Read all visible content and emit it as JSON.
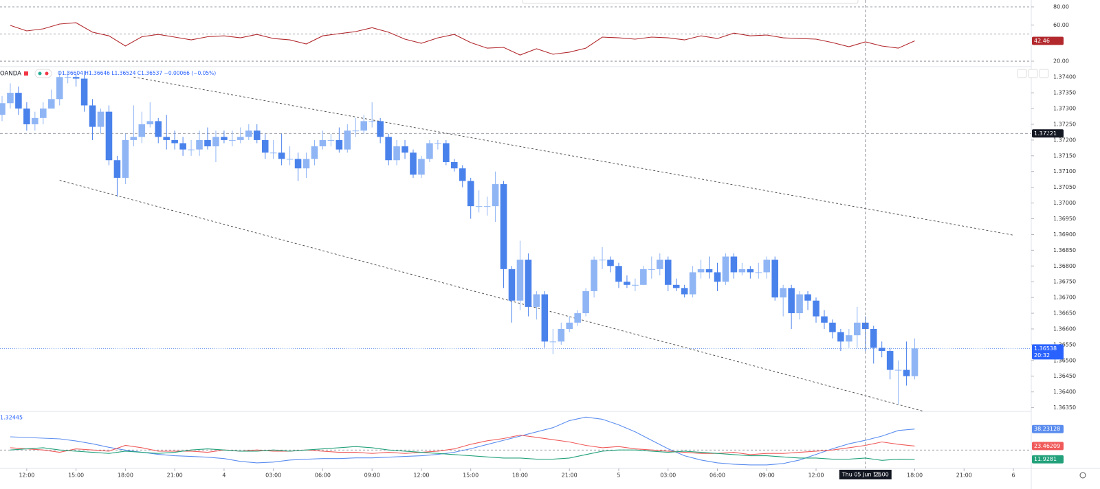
{
  "symbol": "OANDA",
  "readout": "O1.36604 H1.36646 L1.36524 C1.36537 −0.00066 (−0.05%)",
  "chart_data": [
    {
      "type": "line",
      "xlim": [
        0,
        124
      ],
      "ylim": [
        13.2,
        87.6
      ],
      "yticks": [
        {
          "value": 80,
          "label": "80.00"
        },
        {
          "value": 60,
          "label": "60.00"
        },
        {
          "value": 20,
          "label": "20.00"
        }
      ],
      "bands": [
        80,
        50,
        20
      ],
      "x": [
        1,
        3,
        5,
        7,
        9,
        11,
        13,
        15,
        17,
        19,
        21,
        23,
        25,
        27,
        29,
        31,
        33,
        35,
        37,
        39,
        41,
        43,
        45,
        47,
        49,
        51,
        53,
        55,
        57,
        59,
        61,
        63,
        65,
        67,
        69,
        71,
        73,
        75,
        77,
        79,
        81,
        83,
        85,
        87,
        89,
        91,
        93,
        95,
        97,
        99,
        101,
        103,
        105,
        107,
        109,
        111
      ],
      "series": [
        {
          "color": "#b2282d",
          "values": [
            59.5,
            53.4,
            55.7,
            61,
            62.5,
            52,
            48,
            36.7,
            47,
            49.6,
            46.6,
            43.5,
            47,
            48,
            45.8,
            49.6,
            45,
            43.5,
            39,
            48,
            50.4,
            52.7,
            57,
            52,
            44.3,
            39.8,
            45.8,
            49.6,
            40.5,
            34.4,
            35.2,
            26.8,
            33.7,
            27.6,
            30,
            34.4,
            46.6,
            45.8,
            44.3,
            46.6,
            45.8,
            43.5,
            48,
            45,
            51,
            48,
            48.9,
            45.8,
            45,
            44.3,
            40.5,
            36,
            41.3,
            36.7,
            34.4,
            42.46
          ]
        }
      ]
    },
    {
      "type": "candlestick",
      "up_color": "#8fb5f5",
      "down_color": "#4a82ec",
      "xlim": [
        0,
        124
      ],
      "ylim": [
        1.36336,
        1.37431
      ],
      "xticks": [
        {
          "value": 3,
          "label": "12:00"
        },
        {
          "value": 9,
          "label": "15:00"
        },
        {
          "value": 15,
          "label": "18:00"
        },
        {
          "value": 21,
          "label": "21:00"
        },
        {
          "value": 27,
          "label": "4"
        },
        {
          "value": 33,
          "label": "03:00"
        },
        {
          "value": 39,
          "label": "06:00"
        },
        {
          "value": 45,
          "label": "09:00"
        },
        {
          "value": 51,
          "label": "12:00"
        },
        {
          "value": 57,
          "label": "15:00"
        },
        {
          "value": 63,
          "label": "18:00"
        },
        {
          "value": 69,
          "label": "21:00"
        },
        {
          "value": 75,
          "label": "5"
        },
        {
          "value": 81,
          "label": "03:00"
        },
        {
          "value": 87,
          "label": "06:00"
        },
        {
          "value": 93,
          "label": "09:00"
        },
        {
          "value": 99,
          "label": "12:00"
        },
        {
          "value": 111,
          "label": "18:00"
        },
        {
          "value": 117,
          "label": "21:00"
        },
        {
          "value": 123,
          "label": "6"
        }
      ],
      "yticks": [
        {
          "value": 1.374,
          "label": "1.37400"
        },
        {
          "value": 1.3735,
          "label": "1.37350"
        },
        {
          "value": 1.373,
          "label": "1.37300"
        },
        {
          "value": 1.3725,
          "label": "1.37250"
        },
        {
          "value": 1.372,
          "label": "1.37200"
        },
        {
          "value": 1.3715,
          "label": "1.37150"
        },
        {
          "value": 1.371,
          "label": "1.37100"
        },
        {
          "value": 1.3705,
          "label": "1.37050"
        },
        {
          "value": 1.37,
          "label": "1.37000"
        },
        {
          "value": 1.3695,
          "label": "1.36950"
        },
        {
          "value": 1.369,
          "label": "1.36900"
        },
        {
          "value": 1.3685,
          "label": "1.36850"
        },
        {
          "value": 1.368,
          "label": "1.36800"
        },
        {
          "value": 1.3675,
          "label": "1.36750"
        },
        {
          "value": 1.367,
          "label": "1.36700"
        },
        {
          "value": 1.3665,
          "label": "1.36650"
        },
        {
          "value": 1.366,
          "label": "1.36600"
        },
        {
          "value": 1.3655,
          "label": "1.36550"
        },
        {
          "value": 1.365,
          "label": "1.36500"
        },
        {
          "value": 1.3645,
          "label": "1.36450"
        },
        {
          "value": 1.364,
          "label": "1.36400"
        },
        {
          "value": 1.3635,
          "label": "1.36350"
        }
      ],
      "price_line": 1.37221,
      "countdown": "20:32",
      "crosshair": {
        "x": 105,
        "date": "Thu 05 Jun '25",
        "time": "15:00"
      },
      "trendlines": [
        {
          "x": [
            16,
            123
          ],
          "y": [
            1.374,
            1.36898
          ]
        },
        {
          "x": [
            7,
            112
          ],
          "y": [
            1.37072,
            1.36339
          ]
        }
      ],
      "open": [
        1.3728,
        1.37317,
        1.3735,
        1.373,
        1.3725,
        1.3727,
        1.373,
        1.3733,
        1.374,
        1.374,
        1.37395,
        1.3731,
        1.37242,
        1.3729,
        1.37136,
        1.3708,
        1.372,
        1.3721,
        1.3725,
        1.3726,
        1.3721,
        1.372,
        1.3719,
        1.3717,
        1.3717,
        1.372,
        1.3718,
        1.3721,
        1.372,
        1.372,
        1.3721,
        1.3723,
        1.372,
        1.3716,
        1.3716,
        1.3714,
        1.3714,
        1.3711,
        1.3714,
        1.3718,
        1.372,
        1.372,
        1.3717,
        1.3723,
        1.3723,
        1.3726,
        1.3726,
        1.3721,
        1.37136,
        1.3718,
        1.3716,
        1.3709,
        1.3714,
        1.3719,
        1.3719,
        1.3713,
        1.3711,
        1.3707,
        1.3699,
        1.3699,
        1.3699,
        1.3706,
        1.3679,
        1.3669,
        1.3682,
        1.3667,
        1.3671,
        1.3656,
        1.3656,
        1.366,
        1.3662,
        1.3665,
        1.3672,
        1.3682,
        1.3682,
        1.368,
        1.3675,
        1.3674,
        1.3674,
        1.3679,
        1.3679,
        1.3682,
        1.3674,
        1.3673,
        1.3671,
        1.3678,
        1.3679,
        1.3678,
        1.3675,
        1.3683,
        1.3678,
        1.3679,
        1.3678,
        1.3678,
        1.3682,
        1.367,
        1.3673,
        1.3665,
        1.3671,
        1.3669,
        1.3664,
        1.3662,
        1.3659,
        1.3656,
        1.3658,
        1.3662,
        1.366,
        1.3654,
        1.3653,
        1.3647,
        1.3647,
        1.3645
      ],
      "high": [
        1.3734,
        1.3738,
        1.3737,
        1.3732,
        1.3729,
        1.3732,
        1.3736,
        1.3742,
        1.3742,
        1.3741,
        1.3742,
        1.3733,
        1.373,
        1.3731,
        1.3715,
        1.3722,
        1.3731,
        1.3729,
        1.3732,
        1.3727,
        1.3728,
        1.3723,
        1.3721,
        1.372,
        1.3723,
        1.3724,
        1.3723,
        1.3723,
        1.3723,
        1.3724,
        1.3725,
        1.3725,
        1.3722,
        1.372,
        1.3722,
        1.3718,
        1.3716,
        1.3716,
        1.372,
        1.3723,
        1.3722,
        1.3724,
        1.3725,
        1.3727,
        1.3728,
        1.3732,
        1.3727,
        1.3722,
        1.372,
        1.372,
        1.3717,
        1.3715,
        1.372,
        1.372,
        1.372,
        1.3714,
        1.3712,
        1.3708,
        1.3704,
        1.3702,
        1.371,
        1.3707,
        1.368,
        1.3688,
        1.3684,
        1.3672,
        1.3672,
        1.366,
        1.3662,
        1.3664,
        1.3666,
        1.3673,
        1.3683,
        1.3686,
        1.3683,
        1.3681,
        1.3677,
        1.3676,
        1.368,
        1.3683,
        1.3684,
        1.3683,
        1.3676,
        1.3674,
        1.368,
        1.3682,
        1.3683,
        1.3681,
        1.3684,
        1.3684,
        1.3681,
        1.368,
        1.3681,
        1.3683,
        1.3683,
        1.3674,
        1.3674,
        1.3672,
        1.3672,
        1.367,
        1.3666,
        1.3663,
        1.366,
        1.366,
        1.3667,
        1.3664,
        1.3661,
        1.3656,
        1.3654,
        1.365,
        1.3656,
        1.3657
      ],
      "low": [
        1.3726,
        1.373,
        1.3728,
        1.3723,
        1.3723,
        1.3725,
        1.373,
        1.3731,
        1.3738,
        1.3737,
        1.3729,
        1.372,
        1.3722,
        1.3712,
        1.3702,
        1.3706,
        1.3718,
        1.3719,
        1.3724,
        1.3719,
        1.3717,
        1.3717,
        1.3715,
        1.3715,
        1.3715,
        1.3717,
        1.3713,
        1.3719,
        1.3718,
        1.3719,
        1.372,
        1.3719,
        1.3714,
        1.3714,
        1.3712,
        1.3712,
        1.3707,
        1.3708,
        1.3712,
        1.3717,
        1.3718,
        1.3716,
        1.3716,
        1.3721,
        1.3722,
        1.3724,
        1.3719,
        1.3712,
        1.3712,
        1.3714,
        1.3708,
        1.3708,
        1.3713,
        1.3717,
        1.3712,
        1.371,
        1.3705,
        1.3695,
        1.3697,
        1.3696,
        1.3694,
        1.3673,
        1.3662,
        1.3666,
        1.3664,
        1.3663,
        1.3654,
        1.3652,
        1.3655,
        1.3659,
        1.3661,
        1.3664,
        1.367,
        1.3679,
        1.3678,
        1.3673,
        1.3673,
        1.3672,
        1.3674,
        1.3676,
        1.3677,
        1.3672,
        1.3672,
        1.367,
        1.367,
        1.3676,
        1.3676,
        1.3672,
        1.3674,
        1.3676,
        1.3677,
        1.3676,
        1.3676,
        1.3676,
        1.3669,
        1.3664,
        1.366,
        1.3663,
        1.3666,
        1.3662,
        1.366,
        1.3657,
        1.3653,
        1.3654,
        1.3654,
        1.3653,
        1.3649,
        1.3651,
        1.3644,
        1.3636,
        1.3642,
        1.3644
      ],
      "close": [
        1.37317,
        1.3735,
        1.373,
        1.3725,
        1.3727,
        1.373,
        1.3733,
        1.374,
        1.374,
        1.37395,
        1.3731,
        1.37242,
        1.3729,
        1.37136,
        1.3708,
        1.372,
        1.3721,
        1.3725,
        1.3726,
        1.3721,
        1.372,
        1.3719,
        1.3717,
        1.3717,
        1.372,
        1.3718,
        1.3721,
        1.372,
        1.372,
        1.3721,
        1.3723,
        1.372,
        1.3716,
        1.3716,
        1.3714,
        1.3714,
        1.3711,
        1.3714,
        1.3718,
        1.372,
        1.372,
        1.3717,
        1.3723,
        1.3723,
        1.3726,
        1.3726,
        1.3721,
        1.37136,
        1.3718,
        1.3716,
        1.3709,
        1.3714,
        1.3719,
        1.3719,
        1.3713,
        1.3711,
        1.3707,
        1.3699,
        1.3699,
        1.3699,
        1.3706,
        1.3679,
        1.3669,
        1.3682,
        1.3667,
        1.3671,
        1.3656,
        1.3656,
        1.366,
        1.3662,
        1.3665,
        1.3672,
        1.3682,
        1.3682,
        1.368,
        1.3675,
        1.3674,
        1.3674,
        1.3679,
        1.3679,
        1.3682,
        1.3674,
        1.3673,
        1.3671,
        1.3678,
        1.3679,
        1.3678,
        1.3675,
        1.3683,
        1.3678,
        1.3679,
        1.3678,
        1.3678,
        1.3682,
        1.367,
        1.3673,
        1.3665,
        1.3671,
        1.3669,
        1.3664,
        1.3662,
        1.3659,
        1.3656,
        1.3658,
        1.3662,
        1.366,
        1.3654,
        1.3653,
        1.3647,
        1.3647,
        1.3645,
        1.36538
      ]
    },
    {
      "type": "line",
      "header": "1.32445",
      "xlim": [
        0,
        124
      ],
      "ylim": [
        4,
        53
      ],
      "bands": [
        20
      ],
      "x": [
        1,
        3,
        5,
        7,
        9,
        11,
        13,
        15,
        17,
        19,
        21,
        23,
        25,
        27,
        29,
        31,
        33,
        35,
        37,
        39,
        41,
        43,
        45,
        47,
        49,
        51,
        53,
        55,
        57,
        59,
        61,
        63,
        65,
        67,
        69,
        71,
        73,
        75,
        77,
        79,
        81,
        83,
        85,
        87,
        89,
        91,
        93,
        95,
        97,
        99,
        101,
        103,
        105,
        107,
        109,
        111
      ],
      "series": [
        {
          "color": "#5b8def",
          "values": [
            31.5,
            30.89,
            30.28,
            29.67,
            27.83,
            25.39,
            22.33,
            19.88,
            18.07,
            16.21,
            14.99,
            14.38,
            13.76,
            12.54,
            10.09,
            8.87,
            9.48,
            11.32,
            11.93,
            12.54,
            12.54,
            13.15,
            13.15,
            13.76,
            14.38,
            14.99,
            16.21,
            18.07,
            21.1,
            24.77,
            28.44,
            32.11,
            35.78,
            39.45,
            45.57,
            48.63,
            46.79,
            41.9,
            35.78,
            28.44,
            21.1,
            14.99,
            11.32,
            8.87,
            7.65,
            7.04,
            7.04,
            8.26,
            11.32,
            16.21,
            21.1,
            25.39,
            28.44,
            32.11,
            37.01,
            38.23128
          ]
        },
        {
          "color": "#f05a5a",
          "values": [
            22,
            21,
            20,
            18,
            21,
            20,
            19,
            24,
            22,
            19,
            19,
            19,
            18,
            20,
            19,
            20,
            19,
            19,
            20,
            19,
            18,
            18,
            17,
            18,
            17,
            18,
            19,
            21,
            25,
            28,
            30,
            33,
            31,
            29,
            27,
            24,
            22,
            23,
            21,
            20,
            19,
            18,
            17,
            17,
            18,
            16,
            17,
            17,
            18,
            19,
            20,
            22,
            24,
            27,
            25,
            23.46209
          ]
        },
        {
          "color": "#22a17a",
          "values": [
            20,
            21,
            22,
            20,
            19,
            18,
            17,
            19,
            18,
            17,
            18,
            20,
            21,
            20,
            19,
            19,
            20,
            19,
            20,
            21,
            22,
            23,
            22,
            20,
            19,
            18,
            17,
            16,
            15,
            14,
            13,
            13,
            12,
            12,
            13,
            16,
            19,
            20,
            20,
            19,
            18,
            19,
            18,
            17,
            16,
            15,
            15,
            14,
            13,
            13,
            12,
            12,
            13,
            11,
            12,
            11.9281
          ]
        }
      ]
    }
  ]
}
